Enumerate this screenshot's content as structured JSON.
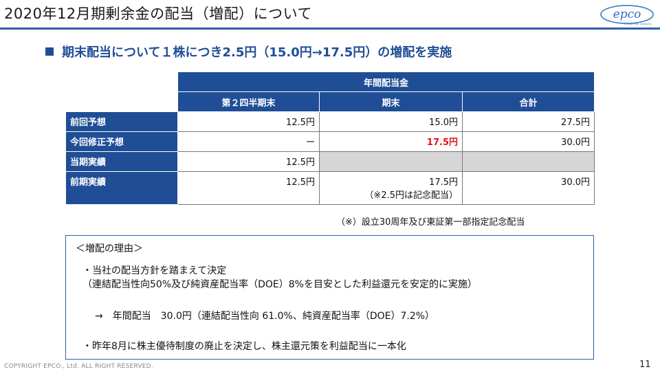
{
  "title": "2020年12月期剰余金の配当（増配）について",
  "headline": "期末配当について１株につき2.5円（15.0円→17.5円）の増配を実施",
  "logo_text": "epco",
  "logo_sub": "Energy Plan Company",
  "table": {
    "group_header": "年間配当金",
    "columns": [
      "第２四半期末",
      "期末",
      "合計"
    ],
    "rows": [
      {
        "label": "前回予想",
        "q2": "12.5円",
        "end": "15.0円",
        "total": "27.5円"
      },
      {
        "label": "今回修正予想",
        "q2": "ー",
        "end": "17.5円",
        "total": "30.0円"
      },
      {
        "label": "当期実績",
        "q2": "12.5円",
        "end": "",
        "total": ""
      },
      {
        "label": "前期実績",
        "q2": "12.5円",
        "end": "17.5円",
        "end_note": "（※2.5円は記念配当）",
        "total": "30.0円"
      }
    ]
  },
  "footnote": "（※）設立30周年及び東証第一部指定記念配当",
  "reason": {
    "heading": "＜増配の理由＞",
    "bullet1": "・当社の配当方針を踏まえて決定",
    "bullet1_sub": "（連結配当性向50%及び純資産配当率（DOE）8%を目安とした利益還元を安定的に実施）",
    "arrow_line": "→　年間配当　30.0円（連結配当性向 61.0%、純資産配当率（DOE）7.2%）",
    "bullet2": "・昨年8月に株主優待制度の廃止を決定し、株主還元策を利益配当に一本化"
  },
  "copyright": "COPYRIGHT EPCO., Ltd. ALL RIGHT RESERVED.",
  "page_number": "11",
  "colors": {
    "accent": "#1f4e96",
    "highlight": "#e01515",
    "gray_cell": "#d6d6d6"
  }
}
